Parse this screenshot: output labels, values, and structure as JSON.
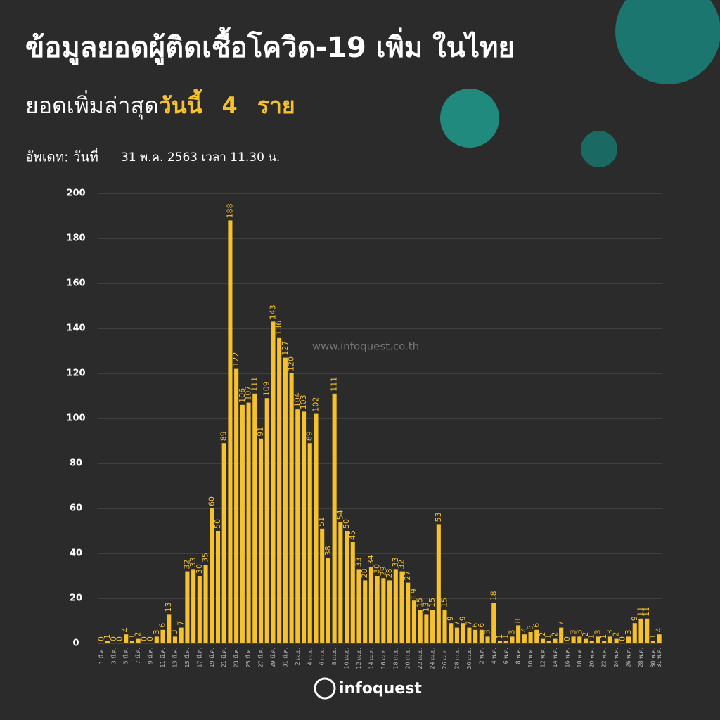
{
  "chart_data": {
    "type": "bar",
    "title": "ข้อมูลยอดผู้ติดเชื้อโควิด-19 เพิ่ม ในไทย",
    "subtitle": {
      "text": "ยอดเพิ่มล่าสุด",
      "today": "วันนี้",
      "count": 4,
      "unit": "ราย"
    },
    "update_label": "อัพเดท: วันที่",
    "update_time": "31 พ.ค. 2563 เวลา 11.30 น.",
    "watermark": "www.infoquest.co.th",
    "logo": "infoquest",
    "color": "#f5c12e",
    "grid": true,
    "ylim": [
      0,
      200
    ],
    "yticks": [
      0,
      20,
      40,
      60,
      80,
      100,
      120,
      140,
      160,
      180,
      200
    ],
    "categories": [
      "1 มี.ค.",
      null,
      "3 มี.ค.",
      null,
      "5 มี.ค.",
      null,
      "7 มี.ค.",
      null,
      "9 มี.ค.",
      null,
      "11 มี.ค.",
      null,
      "13 มี.ค.",
      null,
      "15 มี.ค.",
      null,
      "17 มี.ค.",
      null,
      "19 มี.ค.",
      null,
      "21 มี.ค.",
      null,
      "23 มี.ค.",
      null,
      "25 มี.ค.",
      null,
      "27 มี.ค.",
      null,
      "29 มี.ค.",
      null,
      "31 มี.ค.",
      null,
      "2 เม.ย.",
      null,
      "4 เม.ย.",
      null,
      "6 เม.ย.",
      null,
      "8 เม.ย.",
      null,
      "10 เม.ย.",
      null,
      "12 เม.ย.",
      null,
      "14 เม.ย.",
      null,
      "16 เม.ย.",
      null,
      "18 เม.ย.",
      null,
      "20 เม.ย.",
      null,
      "22 เม.ย.",
      null,
      "24 เม.ย.",
      null,
      "26 เม.ย.",
      null,
      "28 เม.ย.",
      null,
      "30 เม.ย.",
      null,
      "2 พ.ค.",
      null,
      "4 พ.ค.",
      null,
      "6 พ.ค.",
      null,
      "8 พ.ค.",
      null,
      "10 พ.ค.",
      null,
      "12 พ.ค.",
      null,
      "14 พ.ค.",
      null,
      "16 พ.ค.",
      null,
      "18 พ.ค.",
      null,
      "20 พ.ค.",
      null,
      "22 พ.ค.",
      null,
      "24 พ.ค.",
      null,
      "26 พ.ค.",
      null,
      "28 พ.ค.",
      null,
      "30 พ.ค.",
      "31 พ.ค."
    ],
    "values": [
      0,
      1,
      0,
      0,
      4,
      1,
      2,
      0,
      0,
      3,
      6,
      13,
      3,
      7,
      32,
      33,
      30,
      35,
      60,
      50,
      89,
      188,
      122,
      106,
      107,
      111,
      91,
      109,
      143,
      136,
      127,
      120,
      104,
      103,
      89,
      102,
      51,
      38,
      111,
      54,
      50,
      45,
      33,
      28,
      34,
      30,
      29,
      28,
      33,
      32,
      27,
      19,
      15,
      13,
      15,
      53,
      15,
      9,
      7,
      9,
      7,
      6,
      6,
      3,
      18,
      1,
      1,
      3,
      8,
      4,
      5,
      6,
      2,
      1,
      2,
      7,
      0,
      3,
      3,
      2,
      1,
      3,
      1,
      3,
      2,
      0,
      3,
      9,
      11,
      11,
      1,
      4
    ]
  }
}
